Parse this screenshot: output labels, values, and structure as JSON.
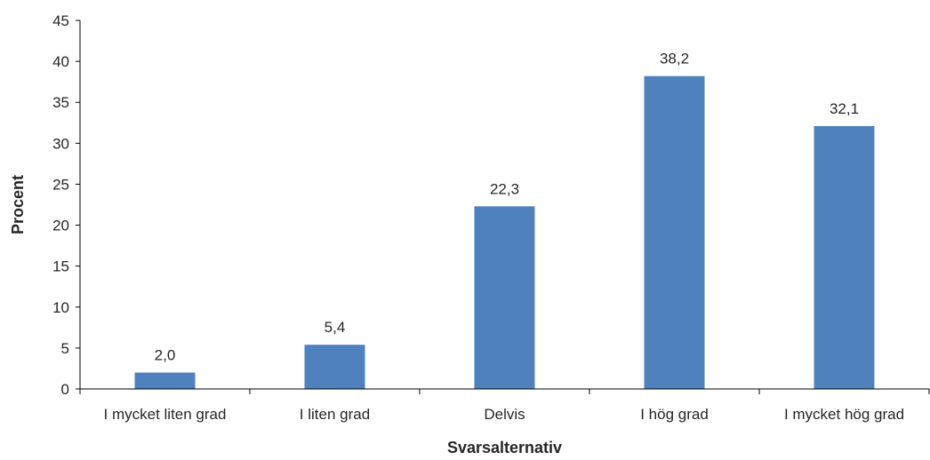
{
  "chart_data": {
    "type": "bar",
    "categories": [
      "I mycket liten grad",
      "I liten grad",
      "Delvis",
      "I hög grad",
      "I mycket hög grad"
    ],
    "values": [
      2.0,
      5.4,
      22.3,
      38.2,
      32.1
    ],
    "data_labels": [
      "2,0",
      "5,4",
      "22,3",
      "38,2",
      "32,1"
    ],
    "title": "",
    "xlabel": "Svarsalternativ",
    "ylabel": "Procent",
    "ylim": [
      0,
      45
    ],
    "yticks": [
      0,
      5,
      10,
      15,
      20,
      25,
      30,
      35,
      40,
      45
    ],
    "grid": false,
    "legend": "none",
    "bar_color": "#4F81BD"
  }
}
